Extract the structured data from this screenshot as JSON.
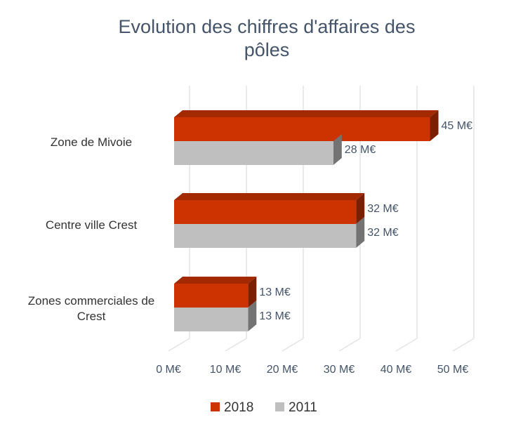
{
  "chart_data": {
    "type": "bar",
    "orientation": "horizontal",
    "title": "Evolution des chiffres d'affaires des pôles",
    "categories": [
      "Zone de Mivoie",
      "Centre ville Crest",
      "Zones commerciales de Crest"
    ],
    "series": [
      {
        "name": "2018",
        "color": "#cc3300",
        "values": [
          45,
          32,
          13
        ],
        "value_labels": [
          "45 M€",
          "32 M€",
          "13 M€"
        ]
      },
      {
        "name": "2011",
        "color": "#bfbfbf",
        "values": [
          28,
          32,
          13
        ],
        "value_labels": [
          "28 M€",
          "32 M€",
          "13 M€"
        ]
      }
    ],
    "xlim": [
      0,
      50
    ],
    "xticks": [
      {
        "value": 0,
        "label": "0 M€"
      },
      {
        "value": 10,
        "label": "10 M€"
      },
      {
        "value": 20,
        "label": "20 M€"
      },
      {
        "value": 30,
        "label": "30 M€"
      },
      {
        "value": 40,
        "label": "40 M€"
      },
      {
        "value": 50,
        "label": "50 M€"
      }
    ],
    "grid": true,
    "legend": "bottom"
  }
}
